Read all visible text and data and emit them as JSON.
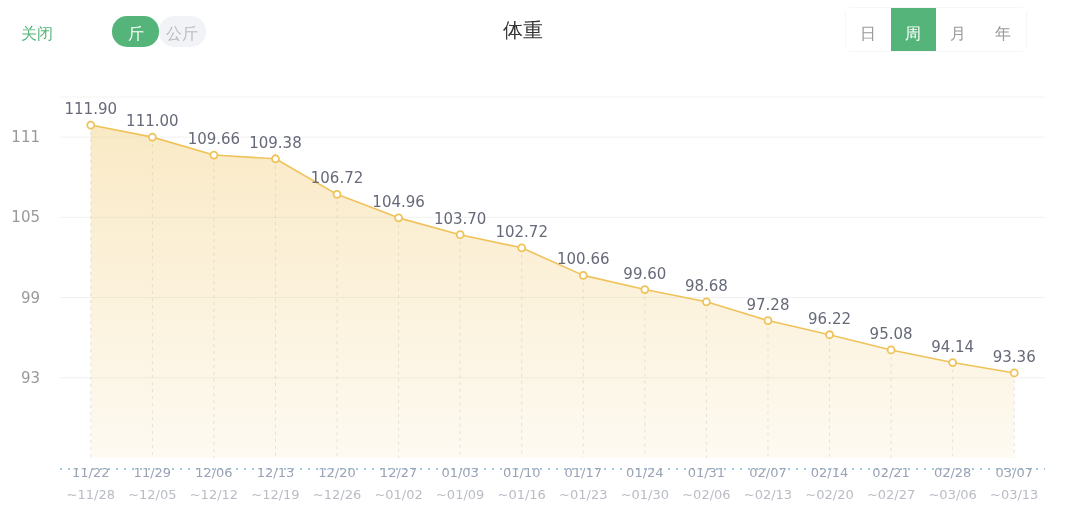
{
  "chart_data": {
    "type": "area",
    "title": "体重",
    "categories": [
      "11/22~11/28",
      "11/29~12/05",
      "12/06~12/12",
      "12/13~12/19",
      "12/20~12/26",
      "12/27~01/02",
      "01/03~01/09",
      "01/10~01/16",
      "01/17~01/23",
      "01/24~01/30",
      "01/31~02/06",
      "02/07~02/13",
      "02/14~02/20",
      "02/21~02/27",
      "02/28~03/06",
      "03/07~03/13"
    ],
    "values": [
      111.9,
      111.0,
      109.66,
      109.38,
      106.72,
      104.96,
      103.7,
      102.72,
      100.66,
      99.6,
      98.68,
      97.28,
      96.22,
      95.08,
      94.14,
      93.36
    ],
    "value_labels": [
      "111.90",
      "111.00",
      "109.66",
      "109.38",
      "106.72",
      "104.96",
      "103.70",
      "102.72",
      "100.66",
      "99.60",
      "98.68",
      "97.28",
      "96.22",
      "95.08",
      "94.14",
      "93.36"
    ],
    "color": "#efc25a",
    "ylim": [
      87,
      114
    ],
    "yticks": [
      93,
      99,
      105,
      111
    ],
    "grid": true,
    "marker": "circle",
    "annotations": [
      "关闭",
      "斤",
      "公斤",
      "日",
      "周",
      "月",
      "年"
    ]
  }
}
